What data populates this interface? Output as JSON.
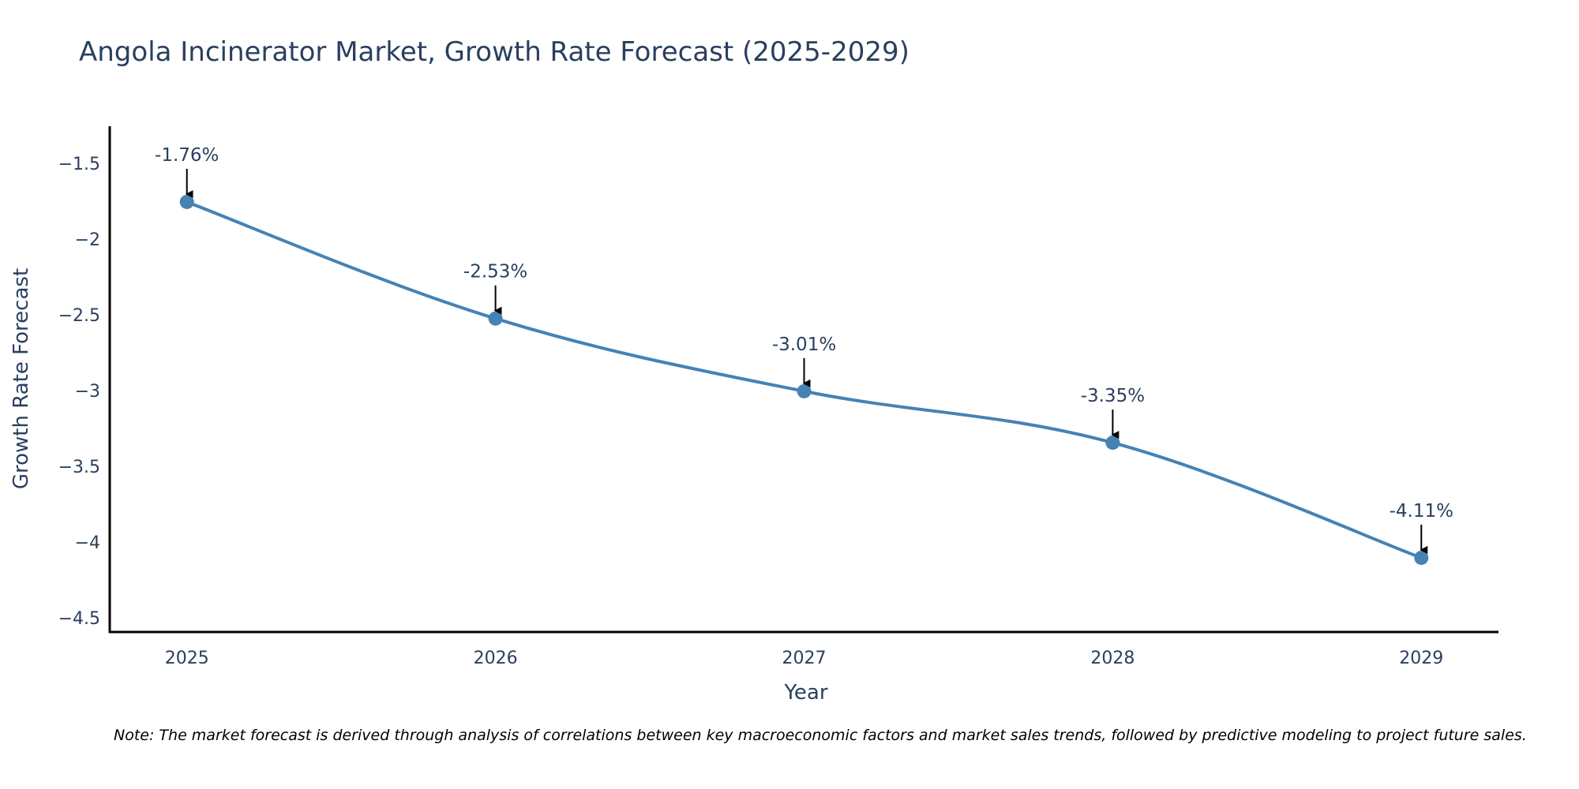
{
  "chart_data": {
    "type": "line",
    "title": "Angola Incinerator Market, Growth Rate Forecast (2025-2029)",
    "xlabel": "Year",
    "ylabel": "Growth Rate Forecast",
    "categories": [
      "2025",
      "2026",
      "2027",
      "2028",
      "2029"
    ],
    "series": [
      {
        "name": "Growth Rate Forecast",
        "values": [
          -1.76,
          -2.53,
          -3.01,
          -3.35,
          -4.11
        ],
        "labels": [
          "-1.76%",
          "-2.53%",
          "-3.01%",
          "-3.35%",
          "-4.11%"
        ],
        "color": "#4682b4"
      }
    ],
    "ylim": [
      -4.6,
      -1.26
    ],
    "yticks": [
      -1.5,
      -2,
      -2.5,
      -3,
      -3.5,
      -4,
      -4.5
    ],
    "ytick_labels": [
      "−1.5",
      "−2",
      "−2.5",
      "−3",
      "−3.5",
      "−4",
      "−4.5"
    ],
    "xlim": [
      -0.25,
      4.25
    ],
    "grid": false,
    "legend": "none"
  },
  "note": "Note: The market forecast is derived through analysis of correlations between key macroeconomic factors and market sales trends, followed by predictive modeling to project future sales."
}
